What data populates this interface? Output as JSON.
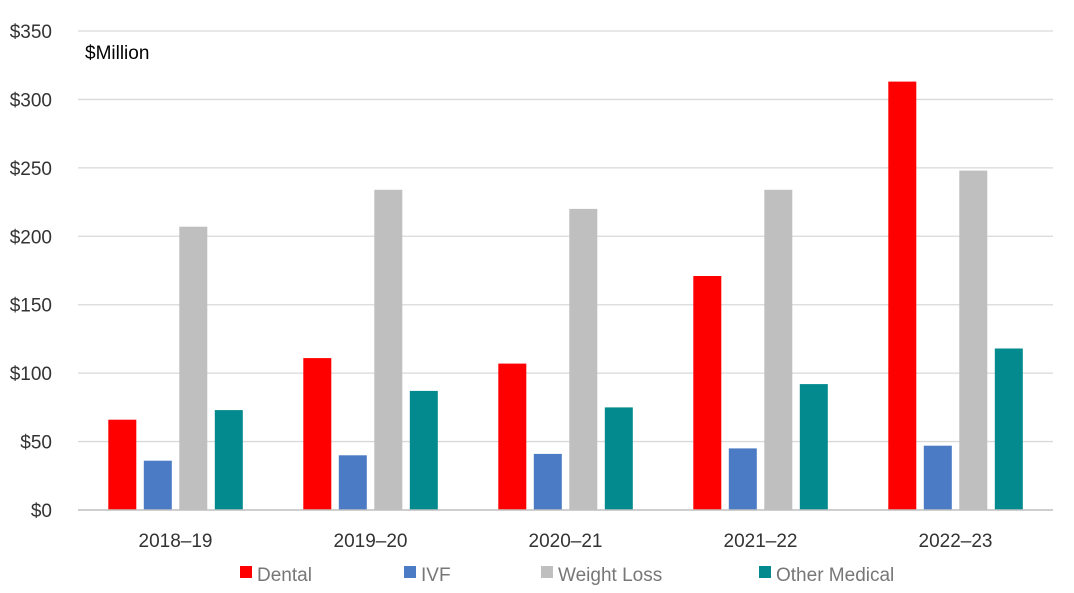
{
  "chart_data": {
    "type": "bar",
    "unit_label": "$Million",
    "categories": [
      "2018–19",
      "2019–20",
      "2020–21",
      "2021–22",
      "2022–23"
    ],
    "series": [
      {
        "name": "Dental",
        "color": "#ff0000",
        "values": [
          66,
          111,
          107,
          171,
          313
        ]
      },
      {
        "name": "IVF",
        "color": "#4a7bc4",
        "values": [
          36,
          40,
          41,
          45,
          47
        ]
      },
      {
        "name": "Weight Loss",
        "color": "#bfbfbf",
        "values": [
          207,
          234,
          220,
          234,
          248
        ]
      },
      {
        "name": "Other Medical",
        "color": "#028a8e",
        "values": [
          73,
          87,
          75,
          92,
          118
        ]
      }
    ],
    "y_ticks": [
      "$0",
      "$50",
      "$100",
      "$150",
      "$200",
      "$250",
      "$300",
      "$350"
    ],
    "ylim": [
      0,
      350
    ],
    "grid": true,
    "legend_position": "bottom"
  }
}
